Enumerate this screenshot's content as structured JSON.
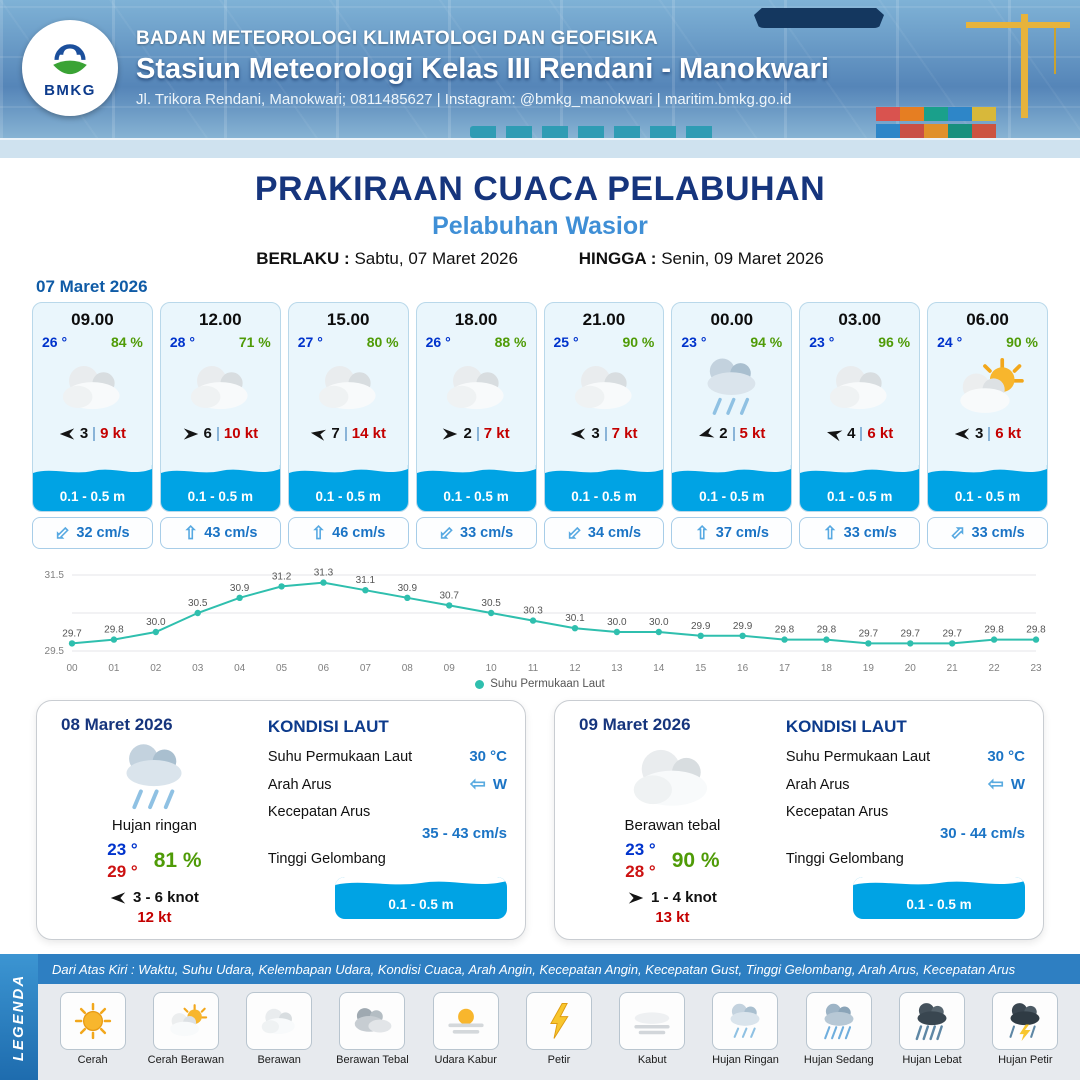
{
  "header": {
    "org": "BADAN METEOROLOGI KLIMATOLOGI DAN GEOFISIKA",
    "station": "Stasiun Meteorologi Kelas III Rendani - Manokwari",
    "contact": "Jl. Trikora Rendani, Manokwari; 0811485627 | Instagram: @bmkg_manokwari | maritim.bmkg.go.id",
    "logo_text": "BMKG"
  },
  "title": {
    "main": "PRAKIRAAN CUACA PELABUHAN",
    "port": "Pelabuhan Wasior",
    "berlaku_label": "BERLAKU :",
    "berlaku_value": "Sabtu, 07 Maret 2026",
    "hingga_label": "HINGGA :",
    "hingga_value": "Senin, 09 Maret 2026"
  },
  "forecast_date": "07 Maret 2026",
  "icons": {
    "current_arrow": "⇧",
    "sea_arrow": "⇦"
  },
  "cards": [
    {
      "time": "09.00",
      "temp": "26 °",
      "humidity": "84 %",
      "icon": "berawan",
      "wind_rot": 0,
      "wind_val": "3",
      "wind_speed": "9 kt",
      "wave": "0.1 - 0.5 m",
      "cur_rot": 225,
      "current": "32 cm/s"
    },
    {
      "time": "12.00",
      "temp": "28 °",
      "humidity": "71 %",
      "icon": "berawan",
      "wind_rot": 180,
      "wind_val": "6",
      "wind_speed": "10 kt",
      "wave": "0.1 - 0.5 m",
      "cur_rot": 0,
      "current": "43 cm/s"
    },
    {
      "time": "15.00",
      "temp": "27 °",
      "humidity": "80 %",
      "icon": "berawan",
      "wind_rot": 10,
      "wind_val": "7",
      "wind_speed": "14 kt",
      "wave": "0.1 - 0.5 m",
      "cur_rot": 0,
      "current": "46 cm/s"
    },
    {
      "time": "18.00",
      "temp": "26 °",
      "humidity": "88 %",
      "icon": "berawan",
      "wind_rot": 180,
      "wind_val": "2",
      "wind_speed": "7 kt",
      "wave": "0.1 - 0.5 m",
      "cur_rot": 225,
      "current": "33 cm/s"
    },
    {
      "time": "21.00",
      "temp": "25 °",
      "humidity": "90 %",
      "icon": "berawan",
      "wind_rot": 0,
      "wind_val": "3",
      "wind_speed": "7 kt",
      "wave": "0.1 - 0.5 m",
      "cur_rot": 225,
      "current": "34 cm/s"
    },
    {
      "time": "00.00",
      "temp": "23 °",
      "humidity": "94 %",
      "icon": "hujan-ringan",
      "wind_rot": -15,
      "wind_val": "2",
      "wind_speed": "5 kt",
      "wave": "0.1 - 0.5 m",
      "cur_rot": 0,
      "current": "37 cm/s"
    },
    {
      "time": "03.00",
      "temp": "23 °",
      "humidity": "96 %",
      "icon": "berawan",
      "wind_rot": 15,
      "wind_val": "4",
      "wind_speed": "6 kt",
      "wave": "0.1 - 0.5 m",
      "cur_rot": 0,
      "current": "33 cm/s"
    },
    {
      "time": "06.00",
      "temp": "24 °",
      "humidity": "90 %",
      "icon": "cerah-berawan",
      "wind_rot": 0,
      "wind_val": "3",
      "wind_speed": "6 kt",
      "wave": "0.1 - 0.5 m",
      "cur_rot": 45,
      "current": "33 cm/s"
    }
  ],
  "chart_data": {
    "type": "line",
    "x": [
      "00",
      "01",
      "02",
      "03",
      "04",
      "05",
      "06",
      "07",
      "08",
      "09",
      "10",
      "11",
      "12",
      "13",
      "14",
      "15",
      "16",
      "17",
      "18",
      "19",
      "20",
      "21",
      "22",
      "23"
    ],
    "series": [
      {
        "name": "Suhu Permukaan Laut",
        "values": [
          29.7,
          29.8,
          30.0,
          30.5,
          30.9,
          31.2,
          31.3,
          31.1,
          30.9,
          30.7,
          30.5,
          30.3,
          30.1,
          30.0,
          30.0,
          29.9,
          29.9,
          29.8,
          29.8,
          29.7,
          29.7,
          29.7,
          29.8,
          29.8
        ]
      }
    ],
    "ylim": [
      29.5,
      31.5
    ],
    "xlabel": "",
    "ylabel": "",
    "legend_label": "Suhu Permukaan Laut",
    "legend_position": "bottom-center",
    "grid": true,
    "line_color": "#2fbfae"
  },
  "days": [
    {
      "date": "08 Maret 2026",
      "icon": "hujan-ringan",
      "condition": "Hujan ringan",
      "temp_min": "23 °",
      "temp_max": "29 °",
      "humidity": "81 %",
      "wind_rot": 0,
      "wind_range": "3 - 6 knot",
      "gust": "12 kt",
      "sea_title": "KONDISI LAUT",
      "sst_label": "Suhu Permukaan Laut",
      "sst": "30 °C",
      "current_dir_label": "Arah Arus",
      "current_dir": "W",
      "current_speed_label": "Kecepatan Arus",
      "current_speed": "35  - 43 cm/s",
      "wave_label": "Tinggi Gelombang",
      "wave": "0.1 - 0.5 m"
    },
    {
      "date": "09 Maret 2026",
      "icon": "berawan",
      "condition": "Berawan tebal",
      "temp_min": "23 °",
      "temp_max": "28 °",
      "humidity": "90 %",
      "wind_rot": 180,
      "wind_range": "1  - 4 knot",
      "gust": "13 kt",
      "sea_title": "KONDISI LAUT",
      "sst_label": "Suhu Permukaan Laut",
      "sst": "30 °C",
      "current_dir_label": "Arah Arus",
      "current_dir": "W",
      "current_speed_label": "Kecepatan Arus",
      "current_speed": "30  - 44 cm/s",
      "wave_label": "Tinggi Gelombang",
      "wave": "0.1 - 0.5 m"
    }
  ],
  "legend": {
    "title": "LEGENDA",
    "description": "Dari Atas Kiri : Waktu, Suhu Udara, Kelembapan Udara, Kondisi Cuaca, Arah Angin, Kecepatan Angin, Kecepatan Gust, Tinggi Gelombang, Arah Arus, Kecepatan Arus",
    "items": [
      {
        "label": "Cerah",
        "icon": "cerah"
      },
      {
        "label": "Cerah Berawan",
        "icon": "cerah-berawan"
      },
      {
        "label": "Berawan",
        "icon": "berawan"
      },
      {
        "label": "Berawan Tebal",
        "icon": "berawan-tebal"
      },
      {
        "label": "Udara Kabur",
        "icon": "udara-kabur"
      },
      {
        "label": "Petir",
        "icon": "petir"
      },
      {
        "label": "Kabut",
        "icon": "kabut"
      },
      {
        "label": "Hujan Ringan",
        "icon": "hujan-ringan"
      },
      {
        "label": "Hujan Sedang",
        "icon": "hujan-sedang"
      },
      {
        "label": "Hujan Lebat",
        "icon": "hujan-lebat"
      },
      {
        "label": "Hujan Petir",
        "icon": "hujan-petir"
      }
    ]
  },
  "colors": {
    "accent-blue": "#00a3e4",
    "navy": "#16357d",
    "title-blue": "#3f8fd6",
    "temp-blue": "#0033cc",
    "humidity-green": "#4f9b07",
    "speed-red": "#c40000",
    "value-blue": "#1b74c5",
    "chart-teal": "#2fbfae",
    "footer-blue": "#2e7fc2",
    "date-blue": "#0f5ba6"
  }
}
